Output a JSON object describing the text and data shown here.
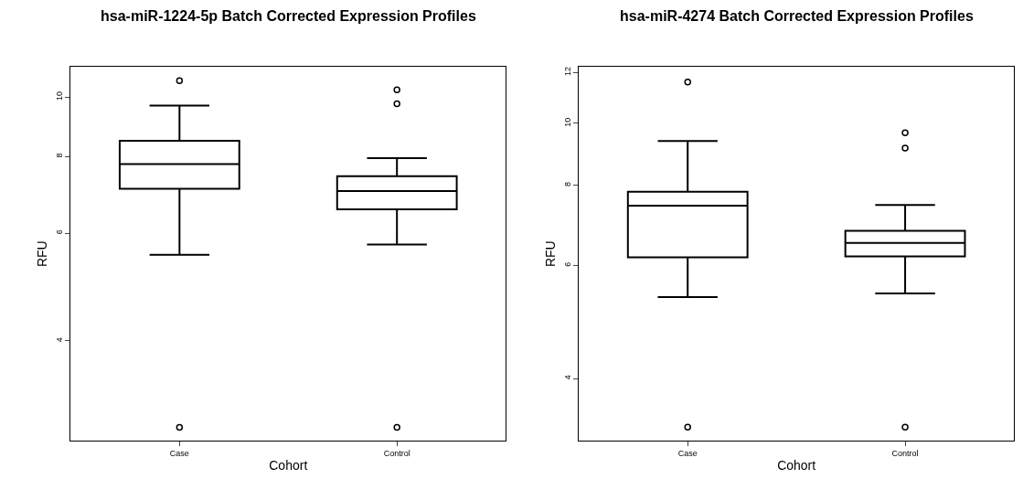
{
  "chart_data": [
    {
      "type": "box",
      "title": "hsa-miR-1224-5p Batch Corrected Expression Profiles",
      "xlabel": "Cohort",
      "ylabel": "RFU",
      "categories": [
        "Case",
        "Control"
      ],
      "log": "y",
      "ylim": [
        2.75,
        11.2
      ],
      "yticks": [
        4,
        6,
        8,
        10
      ],
      "grid": false,
      "marker": "circle",
      "boxes": [
        {
          "low": 5.53,
          "q1": 7.09,
          "median": 7.78,
          "q3": 8.49,
          "high": 9.69,
          "outliers": [
            10.64,
            2.89
          ]
        },
        {
          "low": 5.75,
          "q1": 6.56,
          "median": 7.03,
          "q3": 7.43,
          "high": 7.95,
          "outliers": [
            10.28,
            9.76,
            2.89
          ]
        }
      ]
    },
    {
      "type": "box",
      "title": "hsa-miR-4274 Batch Corrected Expression Profiles",
      "xlabel": "Cohort",
      "ylabel": "RFU",
      "categories": [
        "Case",
        "Control"
      ],
      "log": "y",
      "ylim": [
        3.2,
        12.24
      ],
      "yticks": [
        4,
        6,
        8,
        10,
        12
      ],
      "grid": false,
      "marker": "circle",
      "boxes": [
        {
          "low": 5.36,
          "q1": 6.18,
          "median": 7.44,
          "q3": 7.82,
          "high": 9.39,
          "outliers": [
            11.6,
            3.36
          ]
        },
        {
          "low": 5.43,
          "q1": 6.2,
          "median": 6.51,
          "q3": 6.8,
          "high": 7.46,
          "outliers": [
            9.67,
            9.15,
            3.36
          ]
        }
      ]
    }
  ]
}
